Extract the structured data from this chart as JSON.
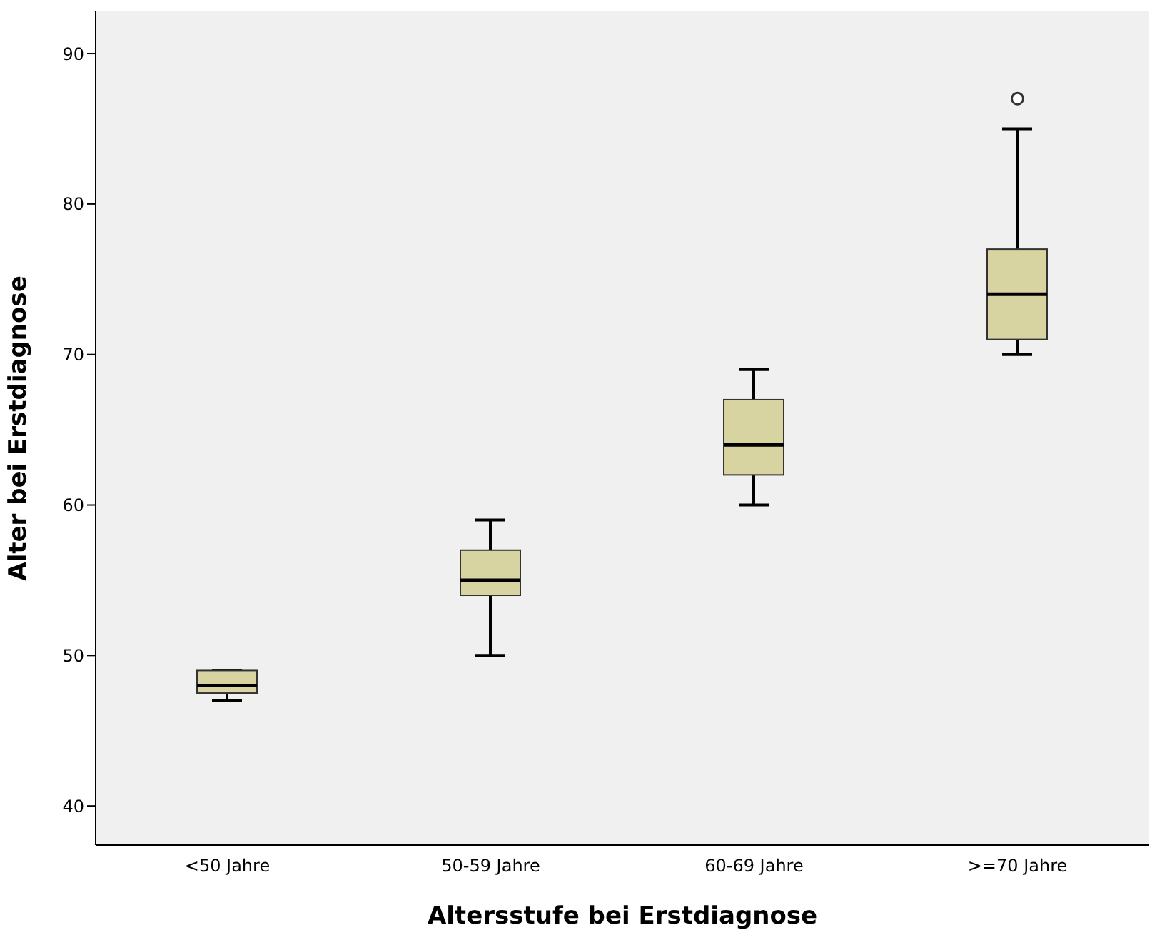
{
  "chart_data": {
    "type": "box",
    "xlabel": "Altersstufe bei Erstdiagnose",
    "ylabel": "Alter bei Erstdiagnose",
    "categories": [
      "<50 Jahre",
      "50-59 Jahre",
      "60-69 Jahre",
      ">=70 Jahre"
    ],
    "color": "#d8d4a2",
    "boxes": [
      {
        "low": 47,
        "q1": 47.5,
        "median": 48,
        "q3": 49,
        "high": 49
      },
      {
        "low": 50,
        "q1": 54,
        "median": 55,
        "q3": 57,
        "high": 59
      },
      {
        "low": 60,
        "q1": 62,
        "median": 64,
        "q3": 67,
        "high": 69
      },
      {
        "low": 70,
        "q1": 71,
        "median": 74,
        "q3": 77,
        "high": 85,
        "outliers": [
          87
        ]
      }
    ],
    "ylim": [
      37.4,
      92.8
    ],
    "yticks": [
      40,
      50,
      60,
      70,
      80,
      90
    ],
    "grid": false
  }
}
